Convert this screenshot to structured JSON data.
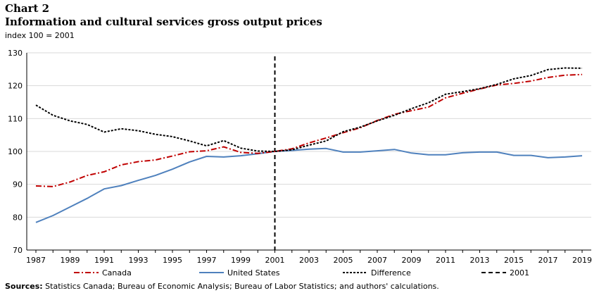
{
  "chart_label": "Chart 2",
  "chart_data": {
    "type": "line",
    "title": "Information and cultural services gross output prices",
    "subtitle": "index 100 = 2001",
    "x": [
      1987,
      1988,
      1989,
      1990,
      1991,
      1992,
      1993,
      1994,
      1995,
      1996,
      1997,
      1998,
      1999,
      2000,
      2001,
      2002,
      2003,
      2004,
      2005,
      2006,
      2007,
      2008,
      2009,
      2010,
      2011,
      2012,
      2013,
      2014,
      2015,
      2016,
      2017,
      2018,
      2019
    ],
    "xticks": [
      1987,
      1989,
      1991,
      1993,
      1995,
      1997,
      1999,
      2001,
      2003,
      2005,
      2007,
      2009,
      2011,
      2013,
      2015,
      2017,
      2019
    ],
    "ylim": [
      70,
      130
    ],
    "yticks": [
      70,
      80,
      90,
      100,
      110,
      120,
      130
    ],
    "grid": true,
    "legend_position": "bottom",
    "series": [
      {
        "name": "Canada",
        "color": "#c00000",
        "style": "dash-dot",
        "values": [
          89.5,
          89.3,
          90.7,
          92.7,
          93.8,
          95.9,
          96.9,
          97.4,
          98.6,
          99.9,
          100.2,
          101.4,
          99.7,
          99.4,
          100.0,
          100.8,
          102.6,
          104.1,
          105.7,
          107.2,
          109.4,
          111.3,
          112.4,
          113.5,
          116.3,
          117.7,
          119.0,
          120.2,
          120.7,
          121.4,
          122.5,
          123.2,
          123.4
        ]
      },
      {
        "name": "United States",
        "color": "#4f81bd",
        "style": "solid",
        "values": [
          78.4,
          80.5,
          83.1,
          85.7,
          88.6,
          89.6,
          91.2,
          92.7,
          94.6,
          96.8,
          98.5,
          98.3,
          98.7,
          99.3,
          100.0,
          100.3,
          100.7,
          100.9,
          99.8,
          99.8,
          100.2,
          100.6,
          99.5,
          99.0,
          99.0,
          99.6,
          99.8,
          99.8,
          98.8,
          98.8,
          98.1,
          98.3,
          98.7
        ]
      },
      {
        "name": "Difference",
        "color": "#000000",
        "style": "dotted",
        "values": [
          114.1,
          111.0,
          109.3,
          108.2,
          105.9,
          106.9,
          106.3,
          105.2,
          104.5,
          103.2,
          101.7,
          103.3,
          101.0,
          100.1,
          100.0,
          100.5,
          101.9,
          103.2,
          106.0,
          107.4,
          109.3,
          111.0,
          113.0,
          114.8,
          117.4,
          118.2,
          119.1,
          120.4,
          122.1,
          123.1,
          124.9,
          125.4,
          125.3
        ]
      }
    ],
    "reference_line": {
      "name": "2001",
      "x": 2001,
      "color": "#000000",
      "style": "dashed"
    }
  },
  "sources": {
    "label": "Sources:",
    "text": " Statistics Canada; Bureau of Economic Analysis; Bureau of Labor Statistics; and authors' calculations."
  }
}
